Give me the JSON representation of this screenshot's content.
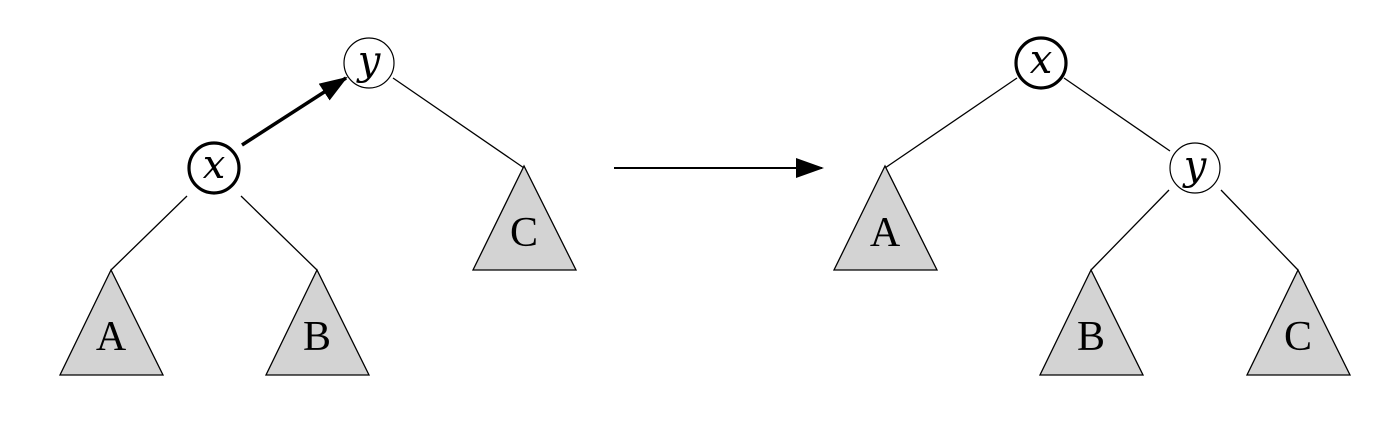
{
  "before": {
    "nodes": {
      "x": "x",
      "y": "y"
    },
    "subtrees": {
      "a": "A",
      "b": "B",
      "c": "C"
    }
  },
  "after": {
    "nodes": {
      "x": "x",
      "y": "y"
    },
    "subtrees": {
      "a": "A",
      "b": "B",
      "c": "C"
    }
  },
  "colors": {
    "subtree_fill": "#d3d3d3",
    "stroke": "#000000",
    "background": "#ffffff"
  }
}
